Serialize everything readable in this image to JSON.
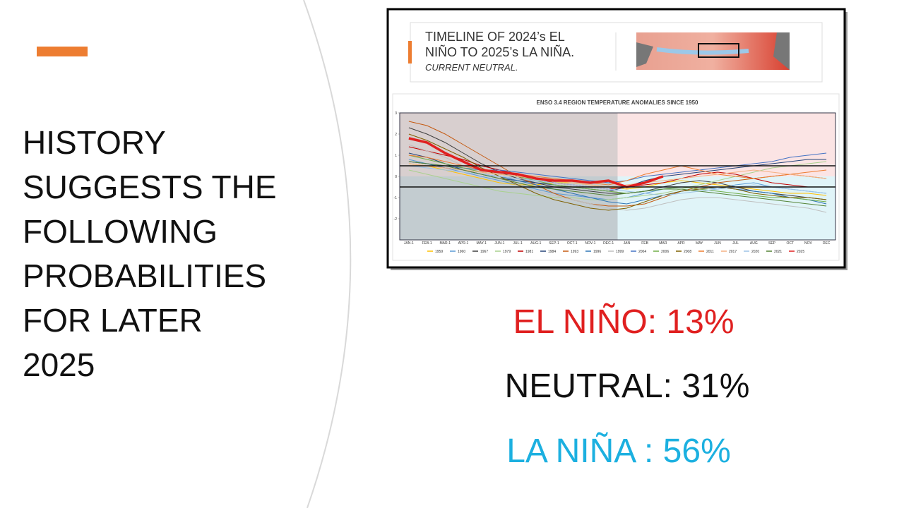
{
  "slide": {
    "title_lines": [
      "HISTORY",
      "SUGGESTS THE",
      "FOLLOWING",
      "PROBABILITIES",
      "FOR LATER",
      "2025"
    ],
    "probabilities": [
      "EL NIÑO: 13%",
      "NEUTRAL: 31%",
      "LA NIÑA : 56%"
    ]
  },
  "chart_data": {
    "type": "line",
    "header_lines": [
      "TIMELINE OF 2024’s EL",
      "NIÑO TO 2025’s LA NIÑA."
    ],
    "header_note": "CURRENT NEUTRAL.",
    "title": "ENSO 3.4 REGION TEMPERATURE ANOMALIES SINCE 1950",
    "categories": [
      "JAN-1",
      "FEB-1",
      "MAR-1",
      "APR-1",
      "MAY-1",
      "JUN-1",
      "JUL-1",
      "AUG-1",
      "SEP-1",
      "OCT-1",
      "NOV-1",
      "DEC-1",
      "JAN",
      "FEB",
      "MAR",
      "APR",
      "MAY",
      "JUN",
      "JUL",
      "AUG",
      "SEP",
      "OCT",
      "NOV",
      "DEC"
    ],
    "ylim": [
      -3,
      3
    ],
    "yticks": [
      -2,
      -1,
      0,
      1,
      2,
      3
    ],
    "thresholds": [
      0.5,
      -0.5
    ],
    "series": [
      {
        "name": "1959",
        "color": "#ffc000",
        "values": [
          0.6,
          0.5,
          0.3,
          0.1,
          -0.1,
          -0.3,
          -0.4,
          -0.4,
          -0.3,
          -0.3,
          -0.4,
          -0.5,
          -0.6,
          -0.5,
          -0.3,
          -0.2,
          -0.3,
          -0.4,
          -0.5,
          -0.6,
          -0.7,
          -0.8,
          -0.8,
          -0.9
        ]
      },
      {
        "name": "1960",
        "color": "#5b9bd5",
        "values": [
          0.8,
          0.6,
          0.4,
          0.2,
          0.0,
          -0.2,
          -0.4,
          -0.6,
          -0.8,
          -0.9,
          -1.0,
          -1.1,
          -1.0,
          -0.8,
          -0.6,
          -0.5,
          -0.5,
          -0.6,
          -0.4,
          -0.3,
          -0.5,
          -0.6,
          -0.7,
          -0.8
        ]
      },
      {
        "name": "1967",
        "color": "#404040",
        "values": [
          2.3,
          2.0,
          1.6,
          1.1,
          0.6,
          0.2,
          -0.1,
          -0.3,
          -0.5,
          -0.6,
          -0.7,
          -0.8,
          -0.8,
          -0.7,
          -0.5,
          -0.3,
          -0.2,
          -0.3,
          -0.5,
          -0.7,
          -0.8,
          -0.9,
          -1.0,
          -1.1
        ]
      },
      {
        "name": "1979",
        "color": "#a9d18e",
        "values": [
          0.3,
          0.1,
          -0.1,
          -0.3,
          -0.5,
          -0.7,
          -0.8,
          -0.9,
          -1.0,
          -1.0,
          -1.1,
          -1.1,
          -1.0,
          -0.9,
          -0.8,
          -0.6,
          -0.4,
          -0.2,
          0.0,
          0.2,
          0.4,
          0.5,
          0.6,
          0.7
        ]
      },
      {
        "name": "1981",
        "color": "#c00000",
        "values": [
          1.4,
          1.2,
          1.0,
          0.8,
          0.5,
          0.3,
          0.1,
          -0.1,
          -0.3,
          -0.4,
          -0.5,
          -0.6,
          -0.5,
          -0.4,
          -0.3,
          -0.1,
          0.1,
          0.2,
          0.1,
          -0.1,
          -0.3,
          -0.4,
          -0.5,
          -0.5
        ]
      },
      {
        "name": "1984",
        "color": "#264478",
        "values": [
          1.1,
          0.9,
          0.6,
          0.3,
          0.1,
          -0.1,
          -0.2,
          -0.3,
          -0.4,
          -0.5,
          -0.6,
          -0.7,
          -0.5,
          -0.2,
          0.0,
          0.1,
          0.2,
          0.3,
          0.4,
          0.5,
          0.6,
          0.7,
          0.8,
          0.8
        ]
      },
      {
        "name": "1993",
        "color": "#c55a11",
        "values": [
          2.6,
          2.4,
          2.0,
          1.5,
          1.0,
          0.5,
          0.0,
          -0.4,
          -0.8,
          -1.1,
          -1.3,
          -1.4,
          -1.4,
          -1.3,
          -1.0,
          -0.7,
          -0.5,
          -0.3,
          -0.2,
          -0.1,
          0.0,
          0.1,
          0.0,
          -0.1
        ]
      },
      {
        "name": "1996",
        "color": "#2e75b6",
        "values": [
          0.7,
          0.6,
          0.4,
          0.3,
          0.1,
          0.0,
          -0.2,
          -0.4,
          -0.6,
          -0.8,
          -1.0,
          -1.2,
          -1.3,
          -1.1,
          -0.9,
          -0.7,
          -0.6,
          -0.5,
          -0.6,
          -0.7,
          -0.8,
          -1.0,
          -1.1,
          -1.3
        ]
      },
      {
        "name": "1999",
        "color": "#bfbfbf",
        "values": [
          1.5,
          1.2,
          0.9,
          0.5,
          0.2,
          -0.1,
          -0.4,
          -0.7,
          -0.9,
          -1.1,
          -1.3,
          -1.5,
          -1.6,
          -1.5,
          -1.3,
          -1.1,
          -1.0,
          -1.0,
          -1.1,
          -1.2,
          -1.3,
          -1.4,
          -1.5,
          -1.7
        ]
      },
      {
        "name": "2004",
        "color": "#4472c4",
        "values": [
          0.7,
          0.6,
          0.5,
          0.4,
          0.3,
          0.3,
          0.2,
          0.1,
          0.0,
          -0.1,
          -0.2,
          -0.3,
          -0.2,
          0.0,
          0.1,
          0.2,
          0.3,
          0.4,
          0.5,
          0.6,
          0.7,
          0.9,
          1.0,
          1.1
        ]
      },
      {
        "name": "2006",
        "color": "#70ad47",
        "values": [
          1.0,
          0.8,
          0.6,
          0.4,
          0.2,
          0.1,
          0.0,
          -0.2,
          -0.4,
          -0.5,
          -0.6,
          -0.7,
          -0.8,
          -0.7,
          -0.6,
          -0.5,
          -0.6,
          -0.7,
          -0.8,
          -0.9,
          -1.0,
          -1.0,
          -1.1,
          -1.2
        ]
      },
      {
        "name": "2008",
        "color": "#7f6000",
        "values": [
          2.0,
          1.7,
          1.3,
          0.9,
          0.4,
          0.0,
          -0.4,
          -0.8,
          -1.1,
          -1.3,
          -1.5,
          -1.6,
          -1.5,
          -1.2,
          -0.9,
          -0.7,
          -0.6,
          -0.5,
          -0.6,
          -0.8,
          -0.9,
          -1.0,
          -1.0,
          -1.1
        ]
      },
      {
        "name": "2011",
        "color": "#ed7d31",
        "values": [
          1.0,
          0.9,
          0.7,
          0.5,
          0.3,
          0.2,
          0.1,
          0.0,
          -0.1,
          -0.2,
          -0.3,
          -0.4,
          -0.2,
          0.1,
          0.3,
          0.5,
          0.3,
          0.1,
          0.0,
          -0.1,
          0.0,
          0.1,
          0.2,
          0.3
        ]
      },
      {
        "name": "2017",
        "color": "#f4b183",
        "values": [
          0.6,
          0.5,
          0.4,
          0.3,
          0.2,
          0.1,
          0.0,
          -0.1,
          -0.2,
          -0.3,
          -0.4,
          -0.5,
          -0.4,
          -0.3,
          -0.2,
          -0.1,
          0.0,
          0.1,
          0.2,
          0.3,
          0.2,
          0.1,
          0.0,
          -0.1
        ]
      },
      {
        "name": "2020",
        "color": "#9dc3e6",
        "values": [
          0.5,
          0.4,
          0.3,
          0.2,
          0.1,
          0.0,
          -0.1,
          -0.2,
          -0.3,
          -0.4,
          -0.5,
          -0.6,
          -0.7,
          -0.8,
          -0.9,
          -0.8,
          -0.7,
          -0.6,
          -0.5,
          -0.4,
          -0.5,
          -0.6,
          -0.7,
          -0.8
        ]
      },
      {
        "name": "2021",
        "color": "#548235",
        "values": [
          0.7,
          0.6,
          0.5,
          0.3,
          0.1,
          -0.1,
          -0.3,
          -0.5,
          -0.6,
          -0.7,
          -0.8,
          -0.9,
          -0.8,
          -0.7,
          -0.6,
          -0.6,
          -0.7,
          -0.8,
          -0.9,
          -1.0,
          -1.1,
          -1.2,
          -1.3,
          -1.4
        ]
      },
      {
        "name": "2025",
        "color": "#e02020",
        "values": [
          1.8,
          1.6,
          1.1,
          0.7,
          0.3,
          0.2,
          0.1,
          -0.1,
          -0.2,
          -0.2,
          -0.3,
          -0.2,
          -0.5,
          -0.3,
          0.0,
          null,
          null,
          null,
          null,
          null,
          null,
          null,
          null,
          null
        ]
      }
    ]
  }
}
